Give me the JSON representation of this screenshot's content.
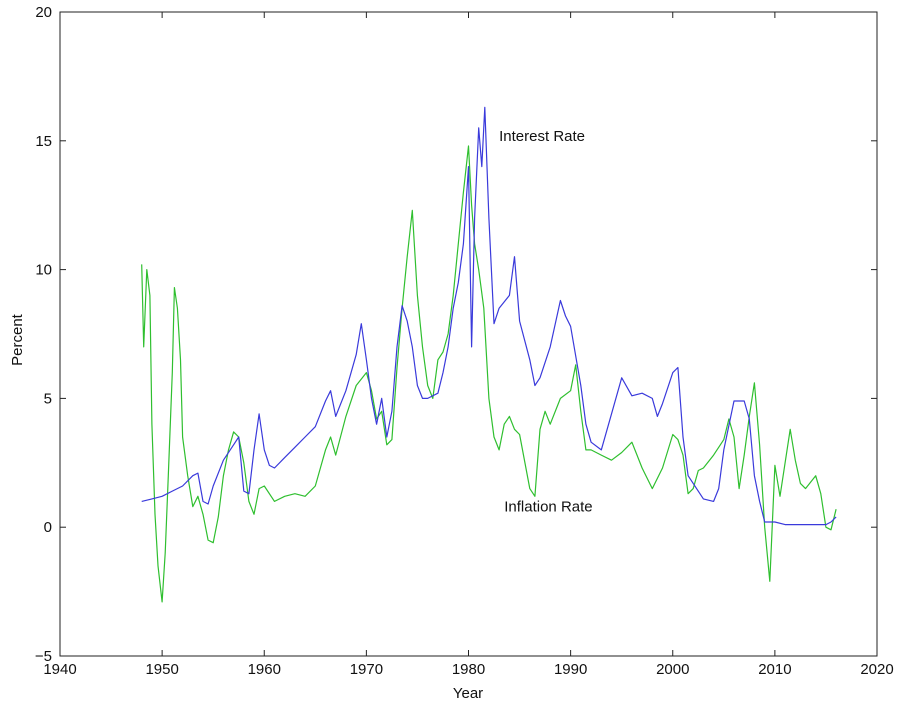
{
  "chart_data": {
    "type": "line",
    "title": "",
    "xlabel": "Year",
    "ylabel": "Percent",
    "xlim": [
      1940,
      2020
    ],
    "ylim": [
      -5,
      20
    ],
    "xticks": [
      "1940",
      "1950",
      "1960",
      "1970",
      "1980",
      "1990",
      "2000",
      "2010",
      "2020"
    ],
    "yticks": [
      "20",
      "15",
      "10",
      "5",
      "0",
      "−5"
    ],
    "grid": false,
    "legend": "none",
    "annotations": [
      {
        "text": "Interest Rate",
        "x": 1983,
        "y": 15.0
      },
      {
        "text": "Inflation Rate",
        "x": 1983.5,
        "y": 0.6
      }
    ],
    "series": [
      {
        "name": "Interest Rate",
        "color": "#3a3adb",
        "x": [
          1948,
          1949,
          1950,
          1951,
          1952,
          1953,
          1953.5,
          1954,
          1954.5,
          1955,
          1956,
          1957,
          1957.5,
          1958,
          1958.5,
          1959,
          1959.5,
          1960,
          1960.5,
          1961,
          1962,
          1963,
          1964,
          1965,
          1966,
          1966.5,
          1967,
          1968,
          1969,
          1969.5,
          1970,
          1970.5,
          1971,
          1971.5,
          1972,
          1972.5,
          1973,
          1973.5,
          1974,
          1974.5,
          1975,
          1975.5,
          1976,
          1977,
          1977.5,
          1978,
          1978.5,
          1979,
          1979.5,
          1980,
          1980.3,
          1980.6,
          1981,
          1981.3,
          1981.6,
          1982,
          1982.5,
          1983,
          1984,
          1984.5,
          1985,
          1986,
          1986.5,
          1987,
          1988,
          1989,
          1989.5,
          1990,
          1991,
          1991.5,
          1992,
          1993,
          1994,
          1995,
          1996,
          1997,
          1998,
          1998.5,
          1999,
          2000,
          2000.5,
          2001,
          2001.5,
          2002,
          2003,
          2004,
          2004.5,
          2005,
          2006,
          2007,
          2007.5,
          2008,
          2008.5,
          2009,
          2010,
          2011,
          2012,
          2013,
          2014,
          2015,
          2015.5,
          2016
        ],
        "values": [
          1.0,
          1.1,
          1.2,
          1.4,
          1.6,
          2.0,
          2.1,
          1.0,
          0.9,
          1.6,
          2.6,
          3.2,
          3.5,
          1.4,
          1.3,
          3.0,
          4.4,
          3.0,
          2.4,
          2.3,
          2.7,
          3.1,
          3.5,
          3.9,
          4.9,
          5.3,
          4.3,
          5.3,
          6.7,
          7.9,
          6.5,
          5.0,
          4.0,
          5.0,
          3.5,
          4.5,
          7.0,
          8.6,
          8.0,
          7.0,
          5.5,
          5.0,
          5.0,
          5.2,
          6.0,
          7.0,
          8.5,
          9.5,
          11.0,
          14.0,
          7.0,
          12.0,
          15.5,
          14.0,
          16.3,
          12.0,
          7.9,
          8.5,
          9.0,
          10.5,
          8.0,
          6.5,
          5.5,
          5.8,
          7.0,
          8.8,
          8.2,
          7.8,
          5.5,
          4.0,
          3.3,
          3.0,
          4.4,
          5.8,
          5.1,
          5.2,
          5.0,
          4.3,
          4.8,
          6.0,
          6.2,
          3.5,
          2.0,
          1.7,
          1.1,
          1.0,
          1.5,
          3.0,
          4.9,
          4.9,
          4.2,
          2.0,
          1.0,
          0.2,
          0.2,
          0.1,
          0.1,
          0.1,
          0.1,
          0.1,
          0.2,
          0.4
        ]
      },
      {
        "name": "Inflation Rate",
        "color": "#2fbf2f",
        "x": [
          1948,
          1948.2,
          1948.5,
          1948.8,
          1949,
          1949.3,
          1949.6,
          1950,
          1950.3,
          1950.6,
          1951,
          1951.2,
          1951.5,
          1951.8,
          1952,
          1952.5,
          1953,
          1953.5,
          1954,
          1954.5,
          1955,
          1955.5,
          1956,
          1956.5,
          1957,
          1957.5,
          1958,
          1958.5,
          1959,
          1959.5,
          1960,
          1961,
          1962,
          1963,
          1964,
          1965,
          1966,
          1966.5,
          1967,
          1968,
          1969,
          1970,
          1970.5,
          1971,
          1971.5,
          1972,
          1972.5,
          1973,
          1973.5,
          1974,
          1974.5,
          1975,
          1975.5,
          1976,
          1976.5,
          1977,
          1977.5,
          1978,
          1978.5,
          1979,
          1979.5,
          1980,
          1980.3,
          1980.6,
          1981,
          1981.5,
          1982,
          1982.5,
          1983,
          1983.5,
          1984,
          1984.5,
          1985,
          1986,
          1986.5,
          1987,
          1987.5,
          1988,
          1989,
          1990,
          1990.5,
          1991,
          1991.5,
          1992,
          1993,
          1994,
          1995,
          1996,
          1997,
          1998,
          1999,
          2000,
          2000.5,
          2001,
          2001.5,
          2002,
          2002.5,
          2003,
          2004,
          2005,
          2005.5,
          2006,
          2006.5,
          2007,
          2007.5,
          2008,
          2008.5,
          2009,
          2009.5,
          2010,
          2010.5,
          2011,
          2011.5,
          2012,
          2012.5,
          2013,
          2014,
          2014.5,
          2015,
          2015.5,
          2016
        ],
        "values": [
          10.2,
          7.0,
          10.0,
          9.0,
          4.0,
          0.5,
          -1.5,
          -2.9,
          -1.0,
          2.0,
          6.0,
          9.3,
          8.5,
          6.5,
          3.5,
          2.0,
          0.8,
          1.2,
          0.5,
          -0.5,
          -0.6,
          0.4,
          2.0,
          3.0,
          3.7,
          3.5,
          2.5,
          1.0,
          0.5,
          1.5,
          1.6,
          1.0,
          1.2,
          1.3,
          1.2,
          1.6,
          3.0,
          3.5,
          2.8,
          4.3,
          5.5,
          6.0,
          5.3,
          4.2,
          4.5,
          3.2,
          3.4,
          6.2,
          8.5,
          10.5,
          12.3,
          9.0,
          7.0,
          5.5,
          5.0,
          6.5,
          6.8,
          7.5,
          9.0,
          11.0,
          13.0,
          14.8,
          12.5,
          11.0,
          10.0,
          8.5,
          5.0,
          3.5,
          3.0,
          4.0,
          4.3,
          3.8,
          3.6,
          1.5,
          1.2,
          3.8,
          4.5,
          4.0,
          5.0,
          5.3,
          6.3,
          4.5,
          3.0,
          3.0,
          2.8,
          2.6,
          2.9,
          3.3,
          2.3,
          1.5,
          2.3,
          3.6,
          3.4,
          2.8,
          1.3,
          1.5,
          2.2,
          2.3,
          2.8,
          3.4,
          4.2,
          3.5,
          1.5,
          2.8,
          4.3,
          5.6,
          3.2,
          0.0,
          -2.1,
          2.4,
          1.2,
          2.5,
          3.8,
          2.6,
          1.7,
          1.5,
          2.0,
          1.3,
          0.0,
          -0.1,
          0.7
        ]
      }
    ]
  }
}
